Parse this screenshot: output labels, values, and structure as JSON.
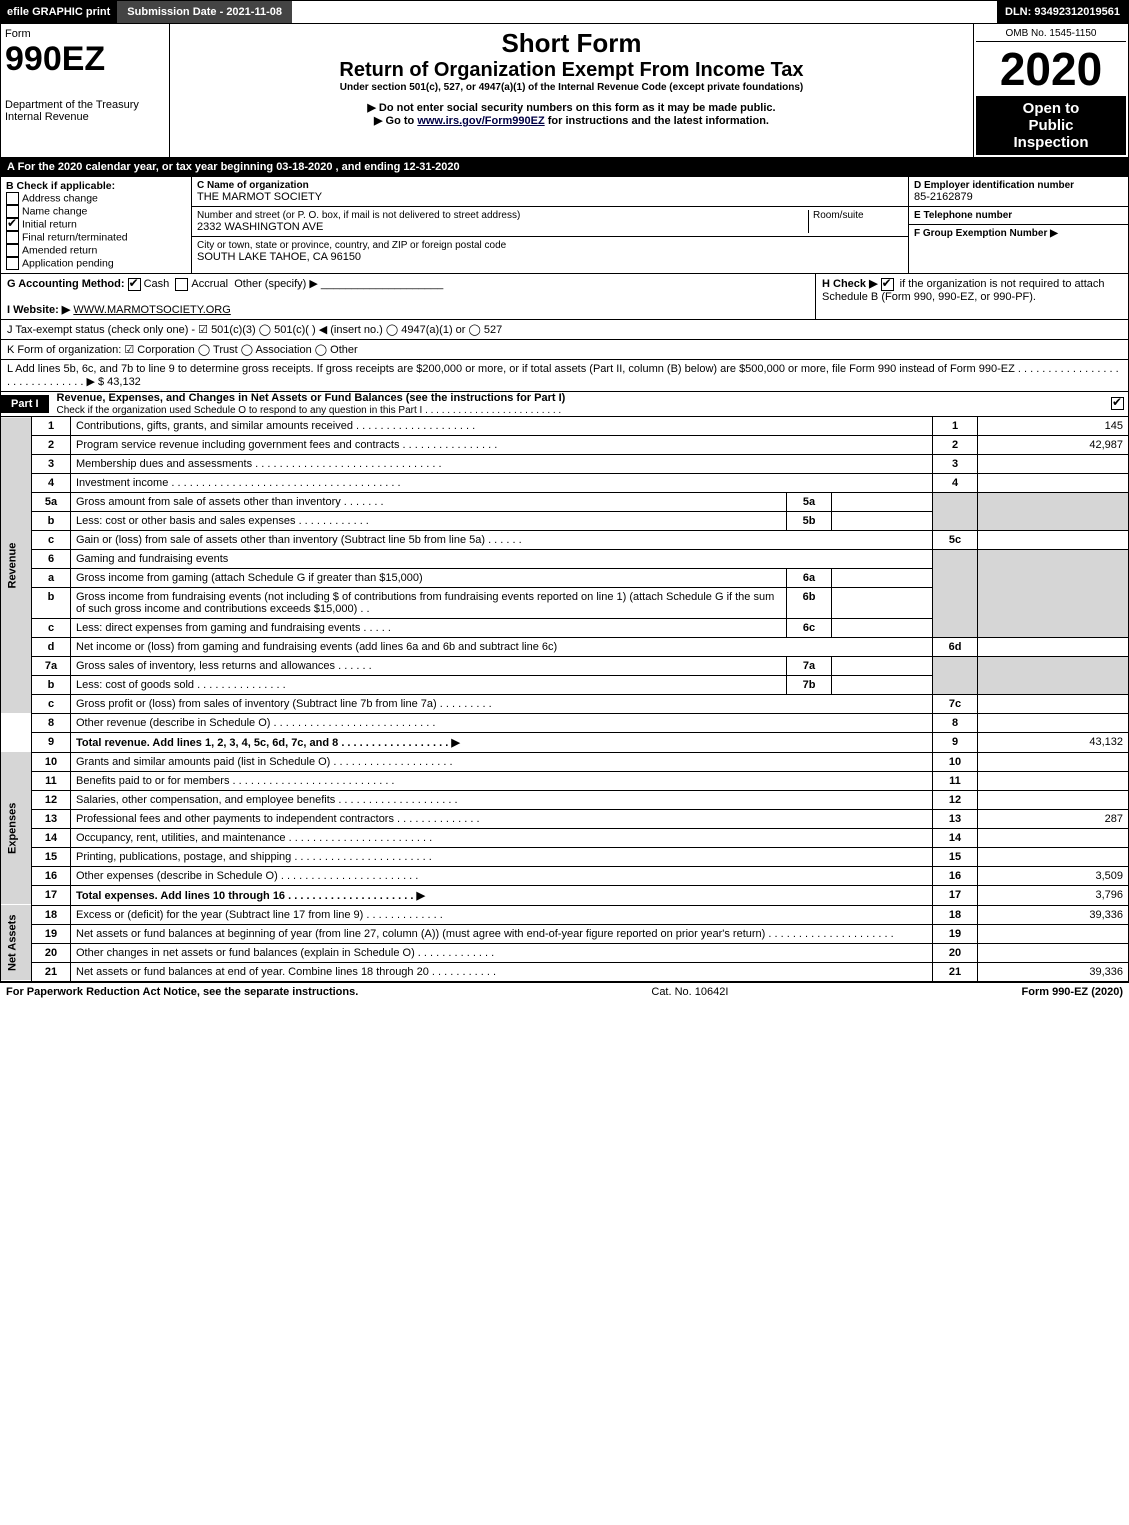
{
  "topbar": {
    "efile": "efile GRAPHIC print",
    "submission": "Submission Date - 2021-11-08",
    "dln_label": "DLN:",
    "dln": "93492312019561"
  },
  "header": {
    "form_word": "Form",
    "form_no": "990EZ",
    "dept": "Department of the Treasury",
    "service": "Internal Revenue",
    "short_form": "Short Form",
    "title": "Return of Organization Exempt From Income Tax",
    "subtitle": "Under section 501(c), 527, or 4947(a)(1) of the Internal Revenue Code (except private foundations)",
    "note1": "▶ Do not enter social security numbers on this form as it may be made public.",
    "note2_prefix": "▶ Go to ",
    "note2_link": "www.irs.gov/Form990EZ",
    "note2_suffix": " for instructions and the latest information.",
    "omb": "OMB No. 1545-1150",
    "year": "2020",
    "open1": "Open to",
    "open2": "Public",
    "open3": "Inspection"
  },
  "rowA": "A For the 2020 calendar year, or tax year beginning 03-18-2020 , and ending 12-31-2020",
  "boxB": {
    "label": "B  Check if applicable:",
    "items": [
      {
        "t": "Address change",
        "c": false
      },
      {
        "t": "Name change",
        "c": false
      },
      {
        "t": "Initial return",
        "c": true
      },
      {
        "t": "Final return/terminated",
        "c": false
      },
      {
        "t": "Amended return",
        "c": false
      },
      {
        "t": "Application pending",
        "c": false
      }
    ]
  },
  "boxC": {
    "name_label": "C Name of organization",
    "name": "THE MARMOT SOCIETY",
    "addr_label": "Number and street (or P. O. box, if mail is not delivered to street address)",
    "room_label": "Room/suite",
    "addr": "2332 WASHINGTON AVE",
    "city_label": "City or town, state or province, country, and ZIP or foreign postal code",
    "city": "SOUTH LAKE TAHOE, CA  96150"
  },
  "boxD": {
    "ein_label": "D Employer identification number",
    "ein": "85-2162879",
    "tel_label": "E Telephone number",
    "grp_label": "F Group Exemption Number  ▶"
  },
  "rowG": {
    "label": "G Accounting Method:",
    "cash": "Cash",
    "accrual": "Accrual",
    "other": "Other (specify) ▶"
  },
  "rowH": {
    "prefix": "H  Check ▶",
    "text": "if the organization is not required to attach Schedule B (Form 990, 990-EZ, or 990-PF)."
  },
  "rowI": {
    "label": "I Website: ▶",
    "value": "WWW.MARMOTSOCIETY.ORG"
  },
  "rowJ": "J Tax-exempt status (check only one) - ☑ 501(c)(3)  ◯ 501(c)(  ) ◀ (insert no.)  ◯ 4947(a)(1) or  ◯ 527",
  "rowK": "K Form of organization:  ☑ Corporation  ◯ Trust  ◯ Association  ◯ Other",
  "rowL": {
    "text": "L Add lines 5b, 6c, and 7b to line 9 to determine gross receipts. If gross receipts are $200,000 or more, or if total assets (Part II, column (B) below) are $500,000 or more, file Form 990 instead of Form 990-EZ  .  .  .  .  .  .  .  .  .  .  .  .  .  .  .  .  .  .  .  .  .  .  .  .  .  .  .  .  .  .  ▶ $",
    "value": "43,132"
  },
  "part1": {
    "tag": "Part I",
    "title": "Revenue, Expenses, and Changes in Net Assets or Fund Balances (see the instructions for Part I)",
    "sub": "Check if the organization used Schedule O to respond to any question in this Part I  .  .  .  .  .  .  .  .  .  .  .  .  .  .  .  .  .  .  .  .  .  .  .  .  ."
  },
  "sections": {
    "revenue": "Revenue",
    "expenses": "Expenses",
    "net": "Net Assets"
  },
  "lines": {
    "l1": {
      "n": "1",
      "d": "Contributions, gifts, grants, and similar amounts received  .  .  .  .  .  .  .  .  .  .  .  .  .  .  .  .  .  .  .  .",
      "rn": "1",
      "v": "145"
    },
    "l2": {
      "n": "2",
      "d": "Program service revenue including government fees and contracts  .  .  .  .  .  .  .  .  .  .  .  .  .  .  .  .",
      "rn": "2",
      "v": "42,987"
    },
    "l3": {
      "n": "3",
      "d": "Membership dues and assessments  .  .  .  .  .  .  .  .  .  .  .  .  .  .  .  .  .  .  .  .  .  .  .  .  .  .  .  .  .  .  .",
      "rn": "3",
      "v": ""
    },
    "l4": {
      "n": "4",
      "d": "Investment income  .  .  .  .  .  .  .  .  .  .  .  .  .  .  .  .  .  .  .  .  .  .  .  .  .  .  .  .  .  .  .  .  .  .  .  .  .  .",
      "rn": "4",
      "v": ""
    },
    "l5a": {
      "n": "5a",
      "d": "Gross amount from sale of assets other than inventory  .  .  .  .  .  .  .",
      "sn": "5a"
    },
    "l5b": {
      "n": "b",
      "d": "Less: cost or other basis and sales expenses  .  .  .  .  .  .  .  .  .  .  .  .",
      "sn": "5b"
    },
    "l5c": {
      "n": "c",
      "d": "Gain or (loss) from sale of assets other than inventory (Subtract line 5b from line 5a)  .  .  .  .  .  .",
      "rn": "5c",
      "v": ""
    },
    "l6": {
      "n": "6",
      "d": "Gaming and fundraising events"
    },
    "l6a": {
      "n": "a",
      "d": "Gross income from gaming (attach Schedule G if greater than $15,000)",
      "sn": "6a"
    },
    "l6b": {
      "n": "b",
      "d": "Gross income from fundraising events (not including $                    of contributions from fundraising events reported on line 1) (attach Schedule G if the sum of such gross income and contributions exceeds $15,000)   .  .",
      "sn": "6b"
    },
    "l6c": {
      "n": "c",
      "d": "Less: direct expenses from gaming and fundraising events   .  .  .  .  .",
      "sn": "6c"
    },
    "l6d": {
      "n": "d",
      "d": "Net income or (loss) from gaming and fundraising events (add lines 6a and 6b and subtract line 6c)",
      "rn": "6d",
      "v": ""
    },
    "l7a": {
      "n": "7a",
      "d": "Gross sales of inventory, less returns and allowances  .  .  .  .  .  .",
      "sn": "7a"
    },
    "l7b": {
      "n": "b",
      "d": "Less: cost of goods sold        .  .  .  .  .  .  .  .  .  .  .  .  .  .  .",
      "sn": "7b"
    },
    "l7c": {
      "n": "c",
      "d": "Gross profit or (loss) from sales of inventory (Subtract line 7b from line 7a)  .  .  .  .  .  .  .  .  .",
      "rn": "7c",
      "v": ""
    },
    "l8": {
      "n": "8",
      "d": "Other revenue (describe in Schedule O)  .  .  .  .  .  .  .  .  .  .  .  .  .  .  .  .  .  .  .  .  .  .  .  .  .  .  .",
      "rn": "8",
      "v": ""
    },
    "l9": {
      "n": "9",
      "d": "Total revenue. Add lines 1, 2, 3, 4, 5c, 6d, 7c, and 8  .  .  .  .  .  .  .  .  .  .  .  .  .  .  .  .  .  .  ▶",
      "rn": "9",
      "v": "43,132"
    },
    "l10": {
      "n": "10",
      "d": "Grants and similar amounts paid (list in Schedule O)  .  .  .  .  .  .  .  .  .  .  .  .  .  .  .  .  .  .  .  .",
      "rn": "10",
      "v": ""
    },
    "l11": {
      "n": "11",
      "d": "Benefits paid to or for members       .  .  .  .  .  .  .  .  .  .  .  .  .  .  .  .  .  .  .  .  .  .  .  .  .  .  .",
      "rn": "11",
      "v": ""
    },
    "l12": {
      "n": "12",
      "d": "Salaries, other compensation, and employee benefits  .  .  .  .  .  .  .  .  .  .  .  .  .  .  .  .  .  .  .  .",
      "rn": "12",
      "v": ""
    },
    "l13": {
      "n": "13",
      "d": "Professional fees and other payments to independent contractors  .  .  .  .  .  .  .  .  .  .  .  .  .  .",
      "rn": "13",
      "v": "287"
    },
    "l14": {
      "n": "14",
      "d": "Occupancy, rent, utilities, and maintenance  .  .  .  .  .  .  .  .  .  .  .  .  .  .  .  .  .  .  .  .  .  .  .  .",
      "rn": "14",
      "v": ""
    },
    "l15": {
      "n": "15",
      "d": "Printing, publications, postage, and shipping  .  .  .  .  .  .  .  .  .  .  .  .  .  .  .  .  .  .  .  .  .  .  .",
      "rn": "15",
      "v": ""
    },
    "l16": {
      "n": "16",
      "d": "Other expenses (describe in Schedule O)      .  .  .  .  .  .  .  .  .  .  .  .  .  .  .  .  .  .  .  .  .  .  .",
      "rn": "16",
      "v": "3,509"
    },
    "l17": {
      "n": "17",
      "d": "Total expenses. Add lines 10 through 16       .  .  .  .  .  .  .  .  .  .  .  .  .  .  .  .  .  .  .  .  .  ▶",
      "rn": "17",
      "v": "3,796"
    },
    "l18": {
      "n": "18",
      "d": "Excess or (deficit) for the year (Subtract line 17 from line 9)        .  .  .  .  .  .  .  .  .  .  .  .  .",
      "rn": "18",
      "v": "39,336"
    },
    "l19": {
      "n": "19",
      "d": "Net assets or fund balances at beginning of year (from line 27, column (A)) (must agree with end-of-year figure reported on prior year's return)  .  .  .  .  .  .  .  .  .  .  .  .  .  .  .  .  .  .  .  .  .",
      "rn": "19",
      "v": ""
    },
    "l20": {
      "n": "20",
      "d": "Other changes in net assets or fund balances (explain in Schedule O)  .  .  .  .  .  .  .  .  .  .  .  .  .",
      "rn": "20",
      "v": ""
    },
    "l21": {
      "n": "21",
      "d": "Net assets or fund balances at end of year. Combine lines 18 through 20  .  .  .  .  .  .  .  .  .  .  .",
      "rn": "21",
      "v": "39,336"
    }
  },
  "footer": {
    "left": "For Paperwork Reduction Act Notice, see the separate instructions.",
    "mid": "Cat. No. 10642I",
    "right": "Form 990-EZ (2020)"
  }
}
